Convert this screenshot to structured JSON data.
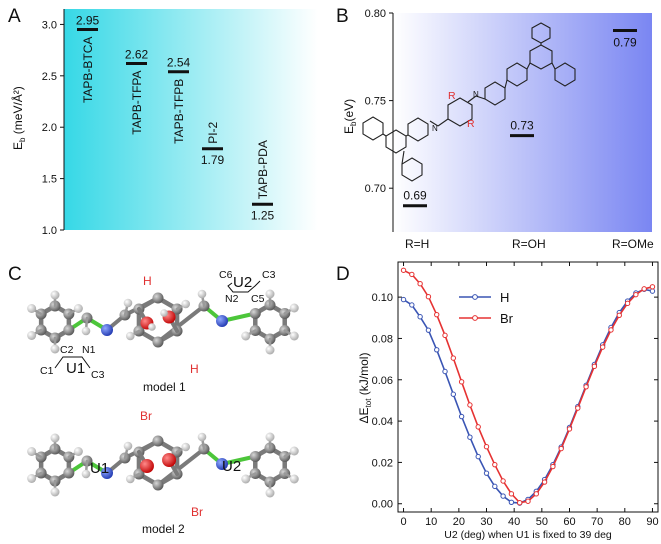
{
  "panel_letters": {
    "a": "A",
    "b": "B",
    "c": "C",
    "d": "D"
  },
  "chart_data": [
    {
      "panel": "A",
      "type": "bar",
      "ylabel": "E_b (meV/Å²)",
      "ylim": [
        1.0,
        3.15
      ],
      "yticks": [
        "1.0",
        "1.5",
        "2.0",
        "2.5",
        "3.0"
      ],
      "categories": [
        "TAPB-BTCA",
        "TAPB-TFPA",
        "TAPB-TFPB",
        "PI-2",
        "TAPB-PDA"
      ],
      "values": [
        2.95,
        2.62,
        2.54,
        1.79,
        1.25
      ],
      "value_labels": [
        "2.95",
        "2.62",
        "2.54",
        "1.79",
        "1.25"
      ],
      "background_gradient": [
        "#36d8e6",
        "#ffffff"
      ]
    },
    {
      "panel": "B",
      "type": "bar",
      "ylabel": "E_b (eV)",
      "ylim": [
        0.675,
        0.8
      ],
      "yticks": [
        "0.70",
        "0.75",
        "0.80"
      ],
      "categories": [
        "R=H",
        "R=OH",
        "R=OMe"
      ],
      "values": [
        0.69,
        0.73,
        0.79
      ],
      "value_labels": [
        "0.69",
        "0.73",
        "0.79"
      ],
      "structure_labels": {
        "r": "R",
        "n": "N"
      },
      "background_gradient": [
        "#ffffff",
        "#7a86f2"
      ]
    },
    {
      "panel": "D",
      "type": "line",
      "ylabel": "ΔE_tot (kJ/mol)",
      "xlabel": "U2 (deg) when U1 is fixed to 39 deg",
      "xlim": [
        -2,
        92
      ],
      "ylim": [
        -0.004,
        0.117
      ],
      "xticks": [
        "0",
        "10",
        "20",
        "30",
        "40",
        "50",
        "60",
        "70",
        "80",
        "90"
      ],
      "yticks": [
        "0.00",
        "0.02",
        "0.04",
        "0.06",
        "0.08",
        "0.10"
      ],
      "x": [
        0,
        3,
        6,
        9,
        12,
        15,
        18,
        21,
        24,
        27,
        30,
        33,
        36,
        39,
        42,
        45,
        48,
        51,
        54,
        57,
        60,
        63,
        66,
        69,
        72,
        75,
        78,
        81,
        84,
        87,
        90
      ],
      "series": [
        {
          "name": "H",
          "color": "#3a55b4",
          "values": [
            0.0988,
            0.0962,
            0.0905,
            0.084,
            0.0745,
            0.064,
            0.053,
            0.0422,
            0.0322,
            0.0228,
            0.0148,
            0.0084,
            0.0037,
            0.0007,
            0.0003,
            0.0021,
            0.006,
            0.0117,
            0.0189,
            0.0274,
            0.0369,
            0.047,
            0.0573,
            0.0674,
            0.0769,
            0.0853,
            0.0925,
            0.0981,
            0.102,
            0.1038,
            0.1029
          ]
        },
        {
          "name": "Br",
          "color": "#e63232",
          "values": [
            0.113,
            0.111,
            0.1065,
            0.1002,
            0.0915,
            0.0815,
            0.0705,
            0.059,
            0.0478,
            0.0372,
            0.0276,
            0.0189,
            0.011,
            0.0048,
            0.0005,
            0.0012,
            0.0048,
            0.0105,
            0.018,
            0.0267,
            0.0362,
            0.0463,
            0.0566,
            0.0665,
            0.0758,
            0.0841,
            0.0912,
            0.097,
            0.1012,
            0.104,
            0.105
          ]
        }
      ]
    }
  ],
  "panel_c": {
    "model1": {
      "title": "model 1",
      "h_top": "H",
      "h_bottom": "H",
      "u1": {
        "label": "U1",
        "c1": "C1",
        "c2": "C2",
        "n1": "N1",
        "c3": "C3"
      },
      "u2": {
        "label": "U2",
        "c6": "C6",
        "c3": "C3",
        "n2": "N2",
        "c5": "C5"
      }
    },
    "model2": {
      "title": "model 2",
      "br_top": "Br",
      "br_bottom": "Br",
      "u1": "U1",
      "u2": "U2"
    }
  }
}
